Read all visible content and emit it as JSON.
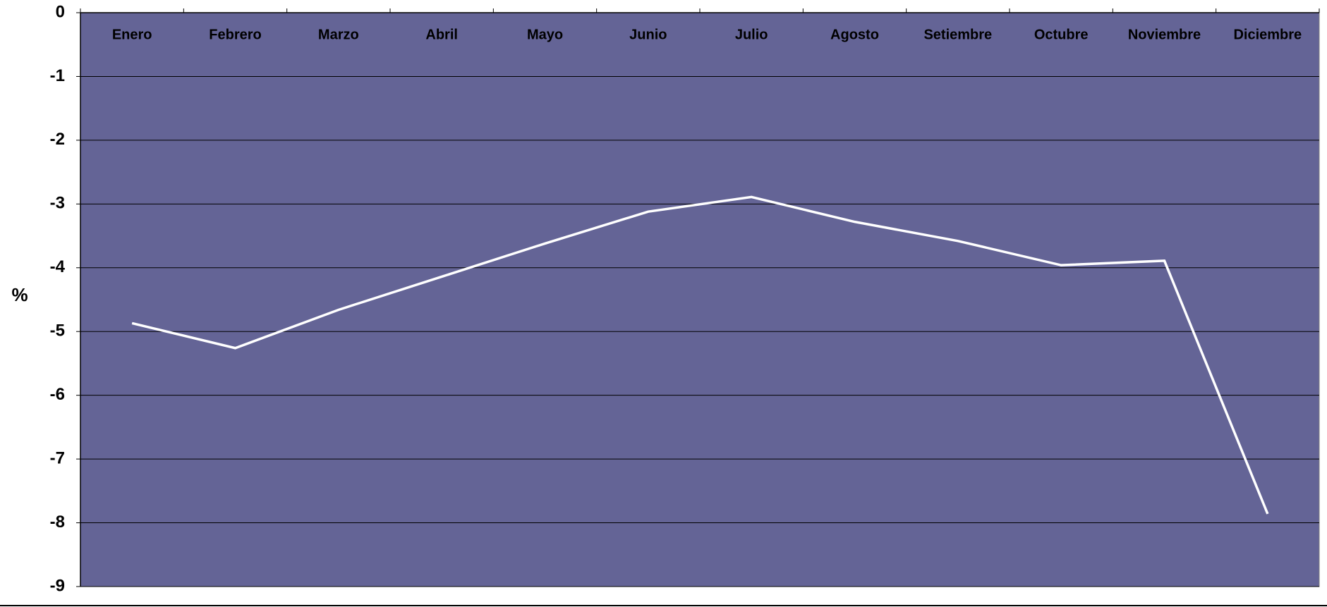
{
  "chart_data": {
    "type": "line",
    "y_label": "%",
    "categories": [
      "Enero",
      "Febrero",
      "Marzo",
      "Abril",
      "Mayo",
      "Junio",
      "Julio",
      "Agosto",
      "Setiembre",
      "Octubre",
      "Noviembre",
      "Diciembre"
    ],
    "series": [
      {
        "color": "#ffffff",
        "values": [
          -4.87,
          -5.26,
          -4.66,
          -4.14,
          -3.62,
          -3.12,
          -2.89,
          -3.28,
          -3.58,
          -3.96,
          -3.89,
          -7.86
        ]
      }
    ],
    "ylim": [
      -9,
      0
    ],
    "yticks": [
      0,
      -1,
      -2,
      -3,
      -4,
      -5,
      -6,
      -7,
      -8,
      -9
    ],
    "grid": true,
    "plot_background": "#646496"
  }
}
